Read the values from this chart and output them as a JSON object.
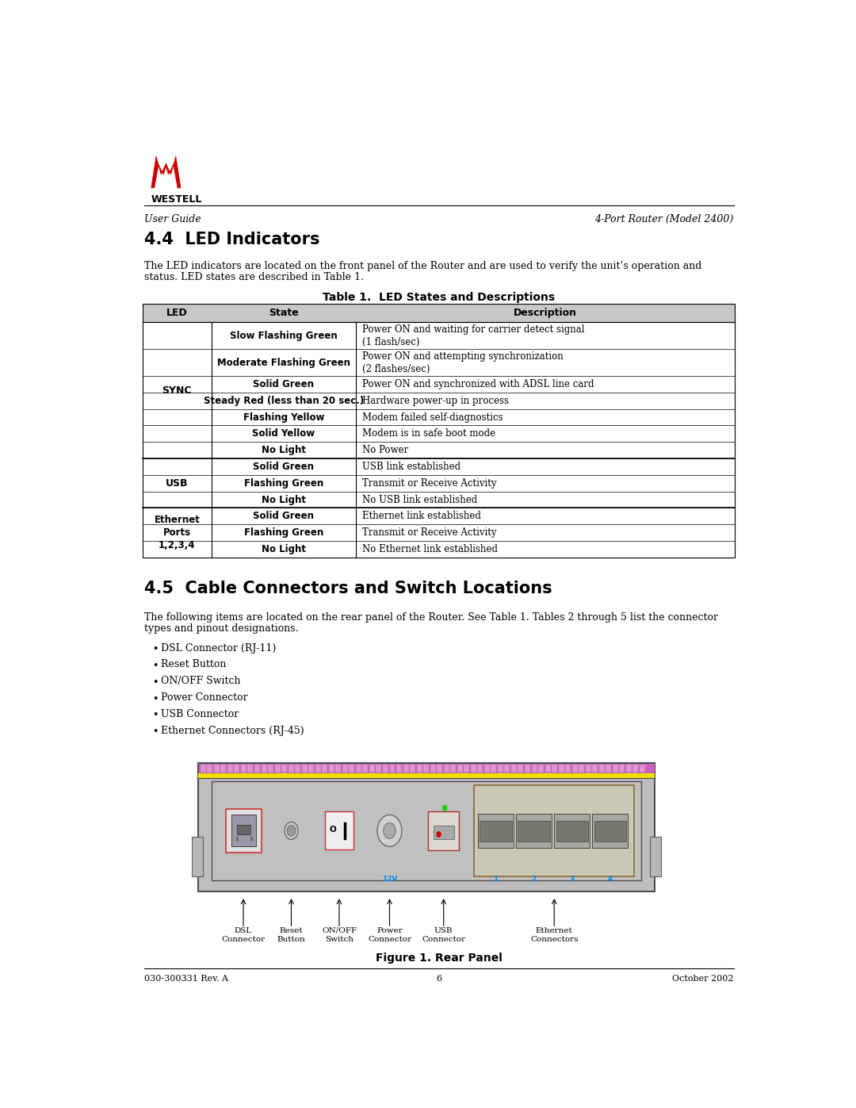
{
  "page_width": 10.8,
  "page_height": 13.97,
  "background_color": "#ffffff",
  "header_left": "User Guide",
  "header_right": "4-Port Router (Model 2400)",
  "section_44_title": "4.4  LED Indicators",
  "section_44_body1": "The LED indicators are located on the front panel of the Router and are used to verify the unit’s operation and",
  "section_44_body2": "status. LED states are described in Table 1.",
  "table_title": "Table 1.  LED States and Descriptions",
  "table_header": [
    "LED",
    "State",
    "Description"
  ],
  "table_rows": [
    [
      "",
      "Slow Flashing Green",
      "Power ON and waiting for carrier detect signal\n(1 flash/sec)"
    ],
    [
      "",
      "Moderate Flashing Green",
      "Power ON and attempting synchronization\n(2 flashes/sec)"
    ],
    [
      "SYNC",
      "Solid Green",
      "Power ON and synchronized with ADSL line card"
    ],
    [
      "",
      "Steady Red (less than 20 sec.)",
      "Hardware power-up in process"
    ],
    [
      "",
      "Flashing Yellow",
      "Modem failed self-diagnostics"
    ],
    [
      "",
      "Solid Yellow",
      "Modem is in safe boot mode"
    ],
    [
      "",
      "No Light",
      "No Power"
    ],
    [
      "USB",
      "Solid Green",
      "USB link established"
    ],
    [
      "",
      "Flashing Green",
      "Transmit or Receive Activity"
    ],
    [
      "",
      "No Light",
      "No USB link established"
    ],
    [
      "Ethernet\nPorts\n1,2,3,4",
      "Solid Green",
      "Ethernet link established"
    ],
    [
      "",
      "Flashing Green",
      "Transmit or Receive Activity"
    ],
    [
      "",
      "No Light",
      "No Ethernet link established"
    ]
  ],
  "section_45_title": "4.5  Cable Connectors and Switch Locations",
  "section_45_body1": "The following items are located on the rear panel of the Router. See Table 1. Tables 2 through 5 list the connector",
  "section_45_body2": "types and pinout designations.",
  "bullet_items": [
    "DSL Connector (RJ-11)",
    "Reset Button",
    "ON/OFF Switch",
    "Power Connector",
    "USB Connector",
    "Ethernet Connectors (RJ-45)"
  ],
  "figure_caption": "Figure 1. Rear Panel",
  "footer_left": "030-300331 Rev. A",
  "footer_center": "6",
  "footer_right": "October 2002"
}
